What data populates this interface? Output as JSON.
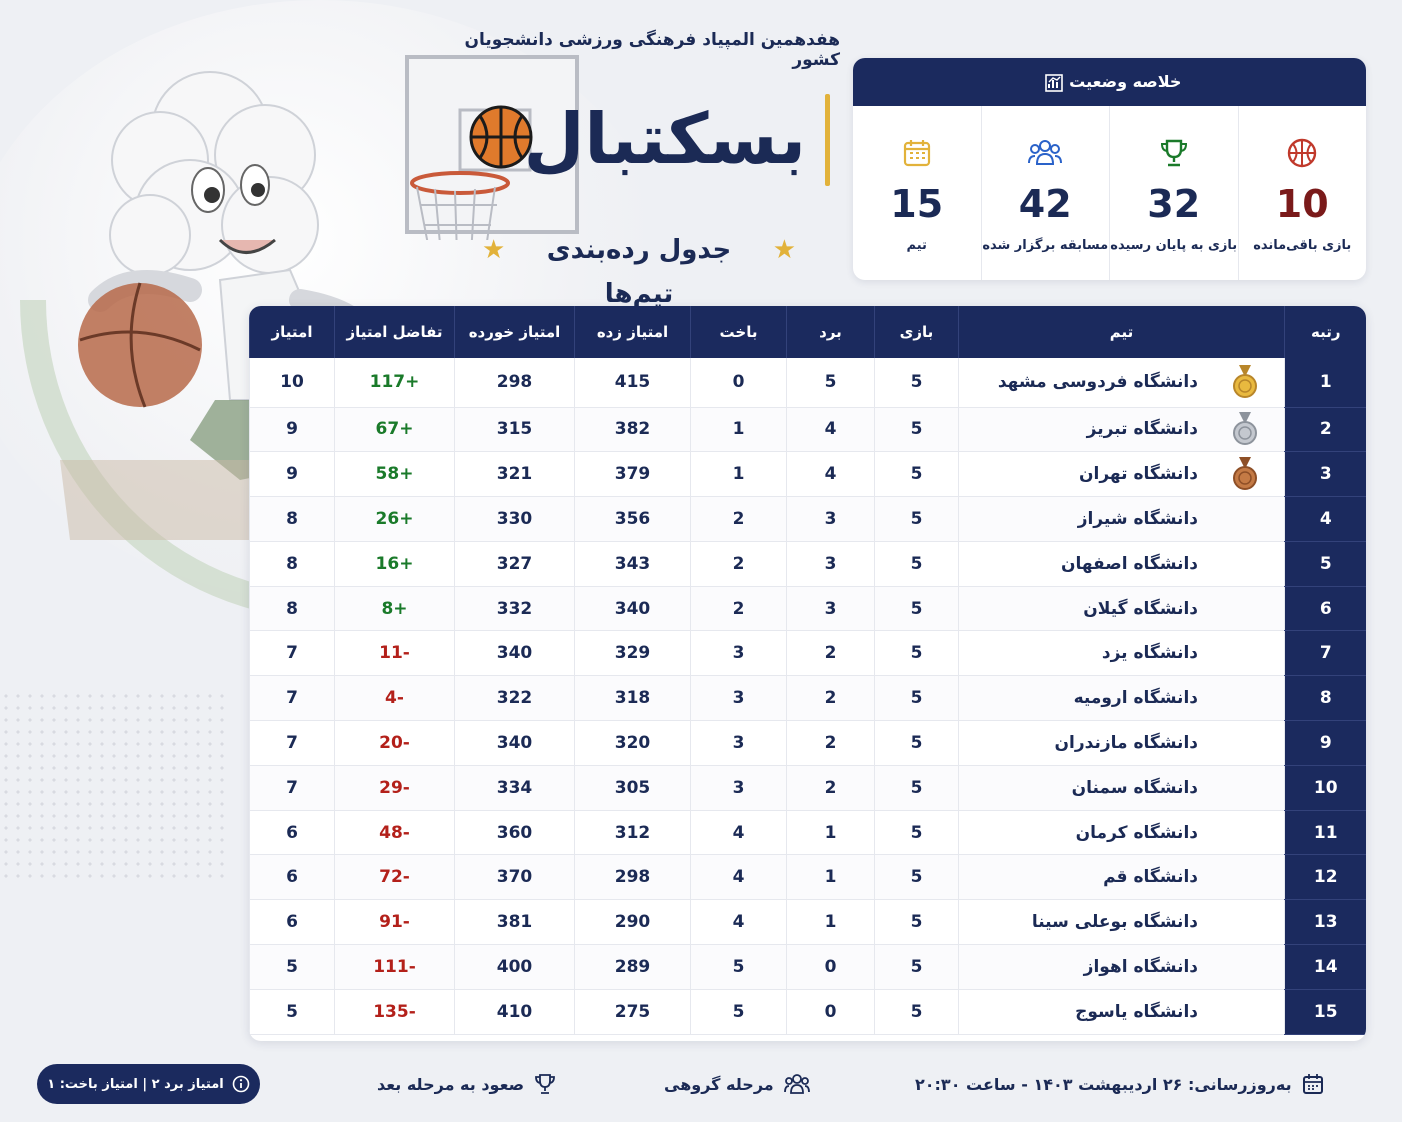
{
  "header": {
    "olympiad": "هفدهمین المپیاد فرهنگی ورزشی دانشجویان کشور",
    "title": "بسکتبال",
    "subtitle": "جدول رده‌بندی تیم‌ها"
  },
  "summary": {
    "heading": "خلاصه وضعیت",
    "stats": [
      {
        "icon": "basketball-icon",
        "value": "10",
        "label": "بازی باقی‌مانده",
        "color": "#7a1a1a"
      },
      {
        "icon": "trophy-icon",
        "value": "32",
        "label": "بازی به پایان رسیده",
        "color": "#1a7a2a"
      },
      {
        "icon": "people-icon",
        "value": "42",
        "label": "مسابقه برگزار شده",
        "color": "#2a62c9"
      },
      {
        "icon": "calendar-icon",
        "value": "15",
        "label": "تیم",
        "color": "#e2b23a"
      }
    ]
  },
  "table": {
    "headers": {
      "rank": "رتبه",
      "team": "تیم",
      "played": "بازی",
      "won": "برد",
      "lost": "باخت",
      "scored": "امتیاز زده",
      "conceded": "امتیاز خورده",
      "diff": "تفاضل امتیاز",
      "points": "امتیاز"
    },
    "rows": [
      {
        "rank": "1",
        "team": "دانشگاه فردوسی مشهد",
        "medal": "gold",
        "played": "5",
        "won": "5",
        "lost": "0",
        "scored": "415",
        "conceded": "298",
        "diff": "+117",
        "points": "10"
      },
      {
        "rank": "2",
        "team": "دانشگاه تبریز",
        "medal": "silver",
        "played": "5",
        "won": "4",
        "lost": "1",
        "scored": "382",
        "conceded": "315",
        "diff": "+67",
        "points": "9"
      },
      {
        "rank": "3",
        "team": "دانشگاه تهران",
        "medal": "bronze",
        "played": "5",
        "won": "4",
        "lost": "1",
        "scored": "379",
        "conceded": "321",
        "diff": "+58",
        "points": "9"
      },
      {
        "rank": "4",
        "team": "دانشگاه شیراز",
        "medal": "",
        "played": "5",
        "won": "3",
        "lost": "2",
        "scored": "356",
        "conceded": "330",
        "diff": "+26",
        "points": "8"
      },
      {
        "rank": "5",
        "team": "دانشگاه اصفهان",
        "medal": "",
        "played": "5",
        "won": "3",
        "lost": "2",
        "scored": "343",
        "conceded": "327",
        "diff": "+16",
        "points": "8"
      },
      {
        "rank": "6",
        "team": "دانشگاه گیلان",
        "medal": "",
        "played": "5",
        "won": "3",
        "lost": "2",
        "scored": "340",
        "conceded": "332",
        "diff": "+8",
        "points": "8"
      },
      {
        "rank": "7",
        "team": "دانشگاه یزد",
        "medal": "",
        "played": "5",
        "won": "2",
        "lost": "3",
        "scored": "329",
        "conceded": "340",
        "diff": "-11",
        "points": "7"
      },
      {
        "rank": "8",
        "team": "دانشگاه ارومیه",
        "medal": "",
        "played": "5",
        "won": "2",
        "lost": "3",
        "scored": "318",
        "conceded": "322",
        "diff": "-4",
        "points": "7"
      },
      {
        "rank": "9",
        "team": "دانشگاه مازندران",
        "medal": "",
        "played": "5",
        "won": "2",
        "lost": "3",
        "scored": "320",
        "conceded": "340",
        "diff": "-20",
        "points": "7"
      },
      {
        "rank": "10",
        "team": "دانشگاه سمنان",
        "medal": "",
        "played": "5",
        "won": "2",
        "lost": "3",
        "scored": "305",
        "conceded": "334",
        "diff": "-29",
        "points": "7"
      },
      {
        "rank": "11",
        "team": "دانشگاه کرمان",
        "medal": "",
        "played": "5",
        "won": "1",
        "lost": "4",
        "scored": "312",
        "conceded": "360",
        "diff": "-48",
        "points": "6"
      },
      {
        "rank": "12",
        "team": "دانشگاه قم",
        "medal": "",
        "played": "5",
        "won": "1",
        "lost": "4",
        "scored": "298",
        "conceded": "370",
        "diff": "-72",
        "points": "6"
      },
      {
        "rank": "13",
        "team": "دانشگاه بوعلی سینا",
        "medal": "",
        "played": "5",
        "won": "1",
        "lost": "4",
        "scored": "290",
        "conceded": "381",
        "diff": "-91",
        "points": "6"
      },
      {
        "rank": "14",
        "team": "دانشگاه اهواز",
        "medal": "",
        "played": "5",
        "won": "0",
        "lost": "5",
        "scored": "289",
        "conceded": "400",
        "diff": "-111",
        "points": "5"
      },
      {
        "rank": "15",
        "team": "دانشگاه یاسوج",
        "medal": "",
        "played": "5",
        "won": "0",
        "lost": "5",
        "scored": "275",
        "conceded": "410",
        "diff": "-135",
        "points": "5"
      }
    ]
  },
  "footer": {
    "updated": "به‌روزرسانی: ۲۶ اردیبهشت ۱۴۰۳ - ساعت ۲۰:۳۰",
    "stage": "مرحله گروهی",
    "advance": "صعود به مرحله بعد",
    "scoring": "امتیاز برد ۲ | امتیاز باخت: ۱"
  },
  "colors": {
    "navy": "#1b2a5e",
    "gold": "#e2b23a",
    "positive": "#1a7a2a",
    "negative": "#b3201a"
  }
}
